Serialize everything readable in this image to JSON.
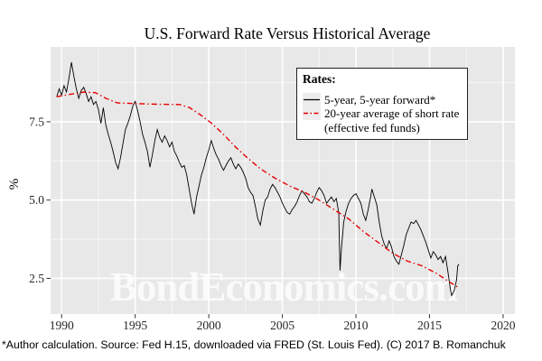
{
  "colors": {
    "panel_bg": "#E8E8E8",
    "grid_major": "#FFFFFF",
    "grid_minor": "#FFFFFF",
    "forward_line": "#000000",
    "average_line": "#E60000",
    "axis_text": "#262626",
    "tick_mark": "#333333",
    "watermark": "#FFFFFF"
  },
  "watermark": {
    "text": "BondEconomics.com"
  },
  "legend": {
    "title": "Rates:",
    "items": [
      {
        "name": "forward-rate",
        "label": "5-year, 5-year forward*",
        "style": "solid",
        "color": "#000000"
      },
      {
        "name": "average-short-rate",
        "lines": [
          "20-year average of short rate",
          "(effective fed funds)"
        ],
        "style": "dash-dot",
        "color": "#E60000"
      }
    ]
  },
  "footer": {
    "text": "*Author calculation. Source: Fed H.15, downloaded via FRED (St. Louis Fed). (C) 2017 B. Romanchuk"
  },
  "chart_data": {
    "type": "line",
    "title": "U.S. Forward Rate Versus Historical Average",
    "xlabel": "",
    "ylabel": "%",
    "xlim": [
      1989.25,
      2020.8
    ],
    "ylim": [
      1.36,
      9.89
    ],
    "x_ticks": [
      1990,
      1995,
      2000,
      2005,
      2010,
      2015,
      2020
    ],
    "x_tick_labels": [
      "1990",
      "1995",
      "2000",
      "2005",
      "2010",
      "2015",
      "2020"
    ],
    "x_minor": [
      1992.5,
      1997.5,
      2002.5,
      2007.5,
      2012.5,
      2017.5
    ],
    "y_ticks": [
      2.5,
      5.0,
      7.5
    ],
    "y_tick_labels": [
      "2.5",
      "5.0",
      "7.5"
    ],
    "y_minor": [
      1.25,
      3.75,
      6.25,
      8.75
    ],
    "grid": "major and minor white gridlines on gray panel",
    "legend_position": "inside top-right",
    "series": [
      {
        "name": "5-year, 5-year forward*",
        "color": "#000000",
        "style": "solid",
        "points": [
          [
            1989.667,
            8.3
          ],
          [
            1989.833,
            8.55
          ],
          [
            1990,
            8.35
          ],
          [
            1990.167,
            8.65
          ],
          [
            1990.333,
            8.45
          ],
          [
            1990.5,
            8.9
          ],
          [
            1990.667,
            9.4
          ],
          [
            1990.833,
            8.95
          ],
          [
            1991,
            8.55
          ],
          [
            1991.167,
            8.25
          ],
          [
            1991.333,
            8.5
          ],
          [
            1991.5,
            8.6
          ],
          [
            1991.667,
            8.4
          ],
          [
            1991.833,
            8.15
          ],
          [
            1992,
            8.3
          ],
          [
            1992.167,
            8.05
          ],
          [
            1992.333,
            8.15
          ],
          [
            1992.5,
            7.9
          ],
          [
            1992.667,
            7.45
          ],
          [
            1992.833,
            7.95
          ],
          [
            1993,
            7.4
          ],
          [
            1993.167,
            7.1
          ],
          [
            1993.333,
            6.85
          ],
          [
            1993.5,
            6.55
          ],
          [
            1993.667,
            6.2
          ],
          [
            1993.833,
            6.0
          ],
          [
            1994,
            6.35
          ],
          [
            1994.167,
            6.8
          ],
          [
            1994.333,
            7.25
          ],
          [
            1994.5,
            7.45
          ],
          [
            1994.667,
            7.7
          ],
          [
            1994.833,
            8.0
          ],
          [
            1995,
            8.15
          ],
          [
            1995.167,
            7.85
          ],
          [
            1995.333,
            7.5
          ],
          [
            1995.5,
            7.1
          ],
          [
            1995.667,
            6.85
          ],
          [
            1995.833,
            6.55
          ],
          [
            1996,
            6.05
          ],
          [
            1996.167,
            6.45
          ],
          [
            1996.333,
            6.9
          ],
          [
            1996.5,
            7.25
          ],
          [
            1996.667,
            7.0
          ],
          [
            1996.833,
            6.85
          ],
          [
            1997,
            7.05
          ],
          [
            1997.167,
            6.9
          ],
          [
            1997.333,
            6.7
          ],
          [
            1997.5,
            6.85
          ],
          [
            1997.667,
            6.55
          ],
          [
            1997.833,
            6.4
          ],
          [
            1998,
            6.2
          ],
          [
            1998.167,
            6.05
          ],
          [
            1998.333,
            6.1
          ],
          [
            1998.5,
            5.8
          ],
          [
            1998.667,
            5.35
          ],
          [
            1998.833,
            4.9
          ],
          [
            1999,
            4.55
          ],
          [
            1999.167,
            5.1
          ],
          [
            1999.333,
            5.45
          ],
          [
            1999.5,
            5.8
          ],
          [
            1999.667,
            6.05
          ],
          [
            1999.833,
            6.35
          ],
          [
            2000,
            6.6
          ],
          [
            2000.167,
            6.9
          ],
          [
            2000.333,
            6.65
          ],
          [
            2000.5,
            6.45
          ],
          [
            2000.667,
            6.3
          ],
          [
            2000.833,
            6.1
          ],
          [
            2001,
            5.95
          ],
          [
            2001.167,
            6.1
          ],
          [
            2001.333,
            6.25
          ],
          [
            2001.5,
            6.35
          ],
          [
            2001.667,
            6.15
          ],
          [
            2001.833,
            6.0
          ],
          [
            2002,
            6.15
          ],
          [
            2002.167,
            6.05
          ],
          [
            2002.333,
            5.9
          ],
          [
            2002.5,
            5.7
          ],
          [
            2002.667,
            5.4
          ],
          [
            2002.833,
            5.25
          ],
          [
            2003,
            5.15
          ],
          [
            2003.167,
            4.8
          ],
          [
            2003.333,
            4.4
          ],
          [
            2003.5,
            4.2
          ],
          [
            2003.667,
            4.65
          ],
          [
            2003.833,
            5.0
          ],
          [
            2004,
            5.1
          ],
          [
            2004.167,
            5.35
          ],
          [
            2004.333,
            5.5
          ],
          [
            2004.5,
            5.4
          ],
          [
            2004.667,
            5.25
          ],
          [
            2004.833,
            5.1
          ],
          [
            2005,
            4.9
          ],
          [
            2005.167,
            4.75
          ],
          [
            2005.333,
            4.6
          ],
          [
            2005.5,
            4.55
          ],
          [
            2005.667,
            4.7
          ],
          [
            2005.833,
            4.8
          ],
          [
            2006,
            4.95
          ],
          [
            2006.167,
            5.15
          ],
          [
            2006.333,
            5.3
          ],
          [
            2006.5,
            5.2
          ],
          [
            2006.667,
            5.1
          ],
          [
            2006.833,
            4.95
          ],
          [
            2007,
            4.9
          ],
          [
            2007.167,
            5.05
          ],
          [
            2007.333,
            5.25
          ],
          [
            2007.5,
            5.4
          ],
          [
            2007.667,
            5.3
          ],
          [
            2007.833,
            5.15
          ],
          [
            2008,
            4.9
          ],
          [
            2008.167,
            5.0
          ],
          [
            2008.333,
            5.1
          ],
          [
            2008.5,
            4.95
          ],
          [
            2008.667,
            5.05
          ],
          [
            2008.833,
            4.6
          ],
          [
            2008.917,
            2.75
          ],
          [
            2009,
            3.4
          ],
          [
            2009.167,
            4.3
          ],
          [
            2009.333,
            4.65
          ],
          [
            2009.5,
            4.9
          ],
          [
            2009.667,
            5.05
          ],
          [
            2009.833,
            5.15
          ],
          [
            2010,
            5.2
          ],
          [
            2010.167,
            5.05
          ],
          [
            2010.333,
            4.9
          ],
          [
            2010.5,
            4.55
          ],
          [
            2010.667,
            4.35
          ],
          [
            2010.833,
            4.7
          ],
          [
            2011,
            5.1
          ],
          [
            2011.083,
            5.35
          ],
          [
            2011.25,
            5.1
          ],
          [
            2011.417,
            4.85
          ],
          [
            2011.583,
            4.3
          ],
          [
            2011.75,
            3.85
          ],
          [
            2011.917,
            3.6
          ],
          [
            2012.083,
            3.45
          ],
          [
            2012.25,
            3.7
          ],
          [
            2012.417,
            3.5
          ],
          [
            2012.583,
            3.2
          ],
          [
            2012.75,
            3.05
          ],
          [
            2012.917,
            2.95
          ],
          [
            2013.083,
            3.25
          ],
          [
            2013.25,
            3.55
          ],
          [
            2013.417,
            3.9
          ],
          [
            2013.583,
            4.1
          ],
          [
            2013.75,
            4.3
          ],
          [
            2013.917,
            4.25
          ],
          [
            2014.083,
            4.35
          ],
          [
            2014.25,
            4.2
          ],
          [
            2014.417,
            4.05
          ],
          [
            2014.583,
            3.85
          ],
          [
            2014.75,
            3.65
          ],
          [
            2014.917,
            3.4
          ],
          [
            2015.083,
            3.15
          ],
          [
            2015.25,
            3.35
          ],
          [
            2015.417,
            3.25
          ],
          [
            2015.583,
            3.1
          ],
          [
            2015.75,
            3.2
          ],
          [
            2015.917,
            3.0
          ],
          [
            2016.083,
            3.2
          ],
          [
            2016.25,
            2.7
          ],
          [
            2016.417,
            2.15
          ],
          [
            2016.5,
            1.95
          ],
          [
            2016.667,
            2.1
          ],
          [
            2016.833,
            2.45
          ],
          [
            2016.917,
            2.9
          ],
          [
            2017,
            2.95
          ]
        ]
      },
      {
        "name": "20-year average of short rate (effective fed funds)",
        "color": "#E60000",
        "style": "dash-dot",
        "points": [
          [
            1989.667,
            8.3
          ],
          [
            1990.5,
            8.37
          ],
          [
            1991.5,
            8.45
          ],
          [
            1992.3,
            8.43
          ],
          [
            1993,
            8.25
          ],
          [
            1993.8,
            8.1
          ],
          [
            1995,
            8.08
          ],
          [
            1996.5,
            8.06
          ],
          [
            1998,
            8.05
          ],
          [
            1998.7,
            7.95
          ],
          [
            1999.5,
            7.7
          ],
          [
            2000.2,
            7.45
          ],
          [
            2001,
            7.1
          ],
          [
            2001.8,
            6.7
          ],
          [
            2002.5,
            6.4
          ],
          [
            2003.5,
            6.0
          ],
          [
            2004.5,
            5.7
          ],
          [
            2005.5,
            5.45
          ],
          [
            2006.5,
            5.25
          ],
          [
            2007.5,
            5.0
          ],
          [
            2008.5,
            4.7
          ],
          [
            2009.5,
            4.4
          ],
          [
            2010.5,
            4.0
          ],
          [
            2011.5,
            3.65
          ],
          [
            2012.5,
            3.3
          ],
          [
            2013.5,
            3.05
          ],
          [
            2014.5,
            2.9
          ],
          [
            2015.5,
            2.65
          ],
          [
            2016.3,
            2.4
          ],
          [
            2017,
            2.2
          ]
        ]
      }
    ]
  }
}
